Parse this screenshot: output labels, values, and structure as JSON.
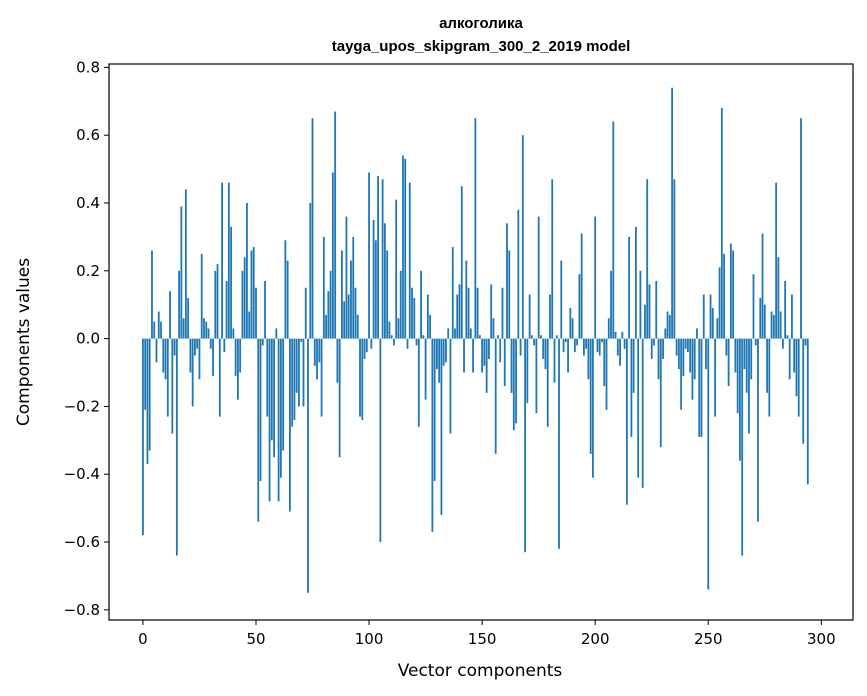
{
  "chart_data": {
    "type": "bar",
    "title": "алкоголика",
    "subtitle": "tayga_upos_skipgram_300_2_2019 model",
    "xlabel": "Vector components",
    "ylabel": "Components values",
    "xlim": [
      -15,
      314
    ],
    "ylim": [
      -0.83,
      0.81
    ],
    "xticks": [
      0,
      50,
      100,
      150,
      200,
      250,
      300
    ],
    "xtick_labels": [
      "0",
      "50",
      "100",
      "150",
      "200",
      "250",
      "300"
    ],
    "yticks": [
      -0.8,
      -0.6,
      -0.4,
      -0.2,
      0.0,
      0.2,
      0.4,
      0.6,
      0.8
    ],
    "ytick_labels": [
      "−0.8",
      "−0.6",
      "−0.4",
      "−0.2",
      "0.0",
      "0.2",
      "0.4",
      "0.6",
      "0.8"
    ],
    "bar_color": "#1f77b4",
    "grid": false,
    "values": [
      -0.58,
      -0.21,
      -0.37,
      -0.33,
      0.26,
      0.05,
      -0.07,
      0.08,
      0.05,
      -0.1,
      -0.12,
      -0.23,
      0.14,
      -0.28,
      -0.05,
      -0.64,
      0.2,
      0.39,
      0.06,
      0.44,
      0.12,
      -0.1,
      -0.2,
      -0.05,
      -0.03,
      -0.12,
      0.25,
      0.06,
      0.05,
      0.03,
      -0.03,
      -0.11,
      0.2,
      0.22,
      -0.23,
      0.46,
      -0.04,
      0.17,
      0.46,
      0.33,
      0.03,
      -0.11,
      -0.18,
      -0.1,
      0.2,
      0.24,
      0.4,
      0.08,
      0.26,
      0.27,
      0.15,
      -0.54,
      -0.42,
      -0.02,
      0.17,
      -0.23,
      -0.48,
      -0.3,
      -0.35,
      0.03,
      -0.48,
      -0.41,
      -0.33,
      0.29,
      0.23,
      -0.51,
      -0.26,
      -0.24,
      -0.16,
      -0.2,
      -0.01,
      -0.2,
      0.15,
      -0.75,
      0.4,
      0.65,
      -0.08,
      -0.12,
      -0.07,
      -0.23,
      0.3,
      0.07,
      0.14,
      0.2,
      0.49,
      0.67,
      -0.13,
      -0.35,
      0.26,
      0.11,
      0.36,
      0.13,
      0.23,
      0.3,
      0.15,
      0.07,
      -0.23,
      -0.24,
      -0.06,
      -0.04,
      0.49,
      -0.03,
      0.35,
      0.29,
      0.48,
      -0.6,
      0.47,
      0.34,
      0.26,
      0.05,
      0.01,
      -0.02,
      0.41,
      0.06,
      0.2,
      0.54,
      0.53,
      -0.03,
      0.46,
      0.15,
      0.12,
      -0.02,
      -0.26,
      0.2,
      0.01,
      -0.18,
      0.13,
      0.07,
      -0.57,
      -0.42,
      -0.09,
      -0.13,
      -0.52,
      -0.08,
      -0.07,
      0.03,
      -0.28,
      0.27,
      0.03,
      0.13,
      0.16,
      0.45,
      -0.1,
      0.23,
      0.15,
      0.03,
      -0.1,
      0.65,
      0.15,
      0.01,
      -0.1,
      -0.08,
      -0.16,
      -0.06,
      0.16,
      0.06,
      -0.34,
      0.01,
      -0.07,
      0.15,
      -0.14,
      0.34,
      0.26,
      -0.16,
      -0.27,
      -0.25,
      0.38,
      -0.05,
      0.6,
      -0.63,
      -0.19,
      0.13,
      0.01,
      -0.02,
      -0.22,
      0.36,
      0.01,
      -0.06,
      -0.09,
      -0.26,
      0.13,
      0.47,
      -0.13,
      0.01,
      -0.62,
      0.23,
      -0.04,
      -0.01,
      -0.1,
      0.09,
      0.06,
      -0.04,
      -0.02,
      0.19,
      0.31,
      -0.05,
      -0.03,
      -0.12,
      -0.34,
      -0.41,
      0.36,
      -0.04,
      -0.05,
      -0.01,
      -0.14,
      -0.21,
      0.06,
      0.2,
      0.64,
      0.02,
      -0.05,
      -0.08,
      0.02,
      -0.03,
      -0.49,
      0.3,
      -0.29,
      -0.16,
      0.33,
      -0.41,
      0.2,
      -0.44,
      0.1,
      0.47,
      0.16,
      -0.06,
      -0.02,
      0.17,
      -0.12,
      -0.32,
      -0.06,
      0.03,
      0.08,
      0.07,
      0.74,
      0.47,
      -0.05,
      -0.09,
      -0.21,
      -0.11,
      -0.03,
      -0.04,
      -0.1,
      -0.18,
      -0.12,
      0.03,
      -0.29,
      -0.29,
      0.13,
      -0.09,
      -0.74,
      0.13,
      0.09,
      -0.23,
      0.06,
      0.21,
      0.68,
      0.25,
      -0.05,
      -0.14,
      0.28,
      0.26,
      -0.1,
      -0.22,
      -0.36,
      -0.64,
      -0.09,
      -0.16,
      -0.28,
      -0.12,
      0.19,
      -0.02,
      -0.54,
      0.12,
      0.31,
      0.1,
      -0.16,
      -0.23,
      0.08,
      0.07,
      0.46,
      0.24,
      0.08,
      -0.03,
      0.17,
      0.01,
      -0.12,
      0.13,
      -0.1,
      -0.17,
      -0.23,
      0.65,
      -0.31,
      -0.02,
      -0.43
    ]
  }
}
